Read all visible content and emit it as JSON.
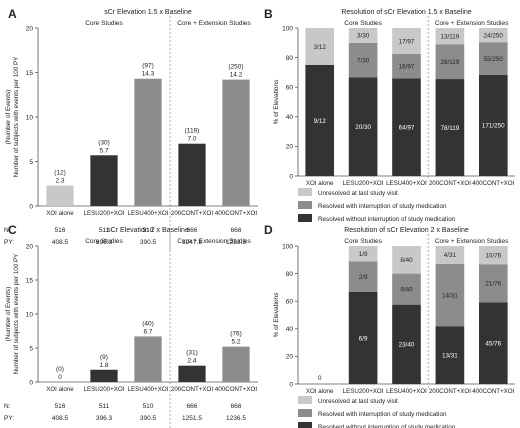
{
  "chart_data": [
    {
      "panel": "A",
      "type": "bar",
      "title": "sCr Elevation 1.5 x Baseline",
      "ylabel_lines": [
        "Number of subjects with events per 100 PY",
        "(Number of Events)"
      ],
      "ylim": [
        0,
        20
      ],
      "yticks": [
        0,
        5,
        10,
        15,
        20
      ],
      "groups": [
        "Core Studies",
        "Core + Extension Studies"
      ],
      "categories": [
        "XOI alone",
        "LESU200+XOI",
        "LESU400+XOI",
        "200CONT+XOI",
        "400CONT+XOI"
      ],
      "values": [
        2.3,
        5.7,
        14.3,
        7.0,
        14.2
      ],
      "value_labels": [
        "2.3",
        "5.7",
        "14.3",
        "7.0",
        "14.2"
      ],
      "event_labels": [
        "(12)",
        "(30)",
        "(97)",
        "(119)",
        "(250)"
      ],
      "bar_colors": [
        "#c8c8c8",
        "#333333",
        "#8c8c8c",
        "#333333",
        "#8c8c8c"
      ],
      "table": {
        "rows": [
          {
            "label": "N:",
            "values": [
              "516",
              "511",
              "510",
              "666",
              "666"
            ]
          },
          {
            "label": "PY:",
            "values": [
              "408.5",
              "396.3",
              "390.5",
              "1247.8",
              "1233.3"
            ]
          }
        ]
      }
    },
    {
      "panel": "B",
      "type": "bar",
      "stacked": true,
      "title": "Resolution of sCr Elevation 1.5 x Baseline",
      "ylabel": "% of Elevations",
      "ylim": [
        0,
        100
      ],
      "yticks": [
        0,
        20,
        40,
        60,
        80,
        100
      ],
      "groups": [
        "Core Studies",
        "Core + Extension Studies"
      ],
      "categories": [
        "XOI alone",
        "LESU200+XOI",
        "LESU400+XOI",
        "200CONT+XOI",
        "400CONT+XOI"
      ],
      "series": [
        {
          "name": "Resolved without interruption of study medication",
          "color": "#333333",
          "values": [
            75.0,
            66.7,
            66.0,
            65.5,
            68.4
          ],
          "labels": [
            "9/12",
            "20/30",
            "64/97",
            "78/119",
            "171/250"
          ]
        },
        {
          "name": "Resolved with interruption of study medication",
          "color": "#8c8c8c",
          "values": [
            0,
            23.3,
            16.5,
            23.5,
            22.0
          ],
          "labels": [
            "",
            "7/30",
            "16/97",
            "28/119",
            "55/250"
          ]
        },
        {
          "name": "Unresolved at last study visit",
          "color": "#c8c8c8",
          "values": [
            25.0,
            10.0,
            17.5,
            10.9,
            9.6
          ],
          "labels": [
            "3/12",
            "3/30",
            "17/97",
            "13/119",
            "24/250"
          ]
        }
      ],
      "legend_order": [
        "Unresolved at last study visit",
        "Resolved with interruption of study medication",
        "Resolved without interruption of study medication"
      ]
    },
    {
      "panel": "C",
      "type": "bar",
      "title": "sCr Elevation 2 x Baseline",
      "ylabel_lines": [
        "Number of subjects with events per 100 PY",
        "(Number of Events)"
      ],
      "ylim": [
        0,
        20
      ],
      "yticks": [
        0,
        5,
        10,
        15,
        20
      ],
      "groups": [
        "Core Studies",
        "Core + Extension Studies"
      ],
      "categories": [
        "XOI alone",
        "LESU200+XOI",
        "LESU400+XOI",
        "200CONT+XOI",
        "400CONT+XOI"
      ],
      "values": [
        0,
        1.8,
        6.7,
        2.4,
        5.2
      ],
      "value_labels": [
        "0",
        "1.8",
        "6.7",
        "2.4",
        "5.2"
      ],
      "event_labels": [
        "(0)",
        "(9)",
        "(40)",
        "(31)",
        "(76)"
      ],
      "bar_colors": [
        "#c8c8c8",
        "#333333",
        "#8c8c8c",
        "#333333",
        "#8c8c8c"
      ],
      "table": {
        "rows": [
          {
            "label": "N:",
            "values": [
              "516",
              "511",
              "510",
              "666",
              "666"
            ]
          },
          {
            "label": "PY:",
            "values": [
              "408.5",
              "396.3",
              "390.5",
              "1251.5",
              "1236.5"
            ]
          }
        ]
      }
    },
    {
      "panel": "D",
      "type": "bar",
      "stacked": true,
      "title": "Resolution of sCr Elevation 2 x Baseline",
      "ylabel": "% of Elevations",
      "ylim": [
        0,
        100
      ],
      "yticks": [
        0,
        20,
        40,
        60,
        80,
        100
      ],
      "groups": [
        "Core Studies",
        "Core + Extension Studies"
      ],
      "categories": [
        "XOI alone",
        "LESU200+XOI",
        "LESU400+XOI",
        "200CONT+XOI",
        "400CONT+XOI"
      ],
      "empty_labels": [
        "0",
        "",
        "",
        "",
        ""
      ],
      "series": [
        {
          "name": "Resolved without interruption of study medication",
          "color": "#333333",
          "values": [
            0,
            66.7,
            57.5,
            41.9,
            59.2
          ],
          "labels": [
            "",
            "6/9",
            "23/40",
            "13/31",
            "45/76"
          ]
        },
        {
          "name": "Resolved with interruption of study medication",
          "color": "#8c8c8c",
          "values": [
            0,
            22.2,
            22.5,
            45.2,
            27.6
          ],
          "labels": [
            "",
            "2/9",
            "9/40",
            "14/31",
            "21/76"
          ]
        },
        {
          "name": "Unresolved at last study visit",
          "color": "#c8c8c8",
          "values": [
            0,
            11.1,
            20.0,
            12.9,
            13.2
          ],
          "labels": [
            "",
            "1/9",
            "8/40",
            "4/31",
            "10/76"
          ]
        }
      ],
      "legend_order": [
        "Unresolved at last study visit",
        "Resolved with interruption of study medication",
        "Resolved without interruption of study medication"
      ]
    }
  ]
}
